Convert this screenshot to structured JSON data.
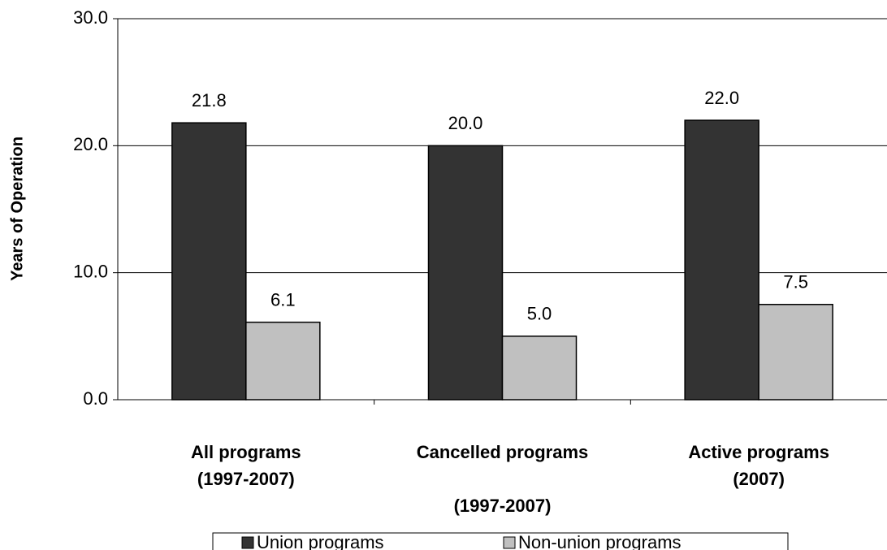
{
  "chart_data": {
    "type": "bar",
    "y_label": "Years of Operation",
    "categories": [
      [
        "All programs",
        "(1997-2007)"
      ],
      [
        "Cancelled programs",
        "(1997-2007)"
      ],
      [
        "Active programs",
        "(2007)"
      ]
    ],
    "series": [
      {
        "name": "Union programs",
        "color": "#333333",
        "values": [
          21.8,
          20.0,
          22.0
        ],
        "value_labels": [
          "21.8",
          "20.0",
          "22.0"
        ]
      },
      {
        "name": "Non-union programs",
        "color": "#c0c0c0",
        "values": [
          6.1,
          5.0,
          7.5
        ],
        "value_labels": [
          "6.1",
          "5.0",
          "7.5"
        ]
      }
    ],
    "ylim": [
      0,
      30
    ],
    "yticks": [
      {
        "value": 0,
        "label": "0.0"
      },
      {
        "value": 10,
        "label": "10.0"
      },
      {
        "value": 20,
        "label": "20.0"
      },
      {
        "value": 30,
        "label": "30.0"
      }
    ],
    "grid": true,
    "legend": "bottom"
  }
}
